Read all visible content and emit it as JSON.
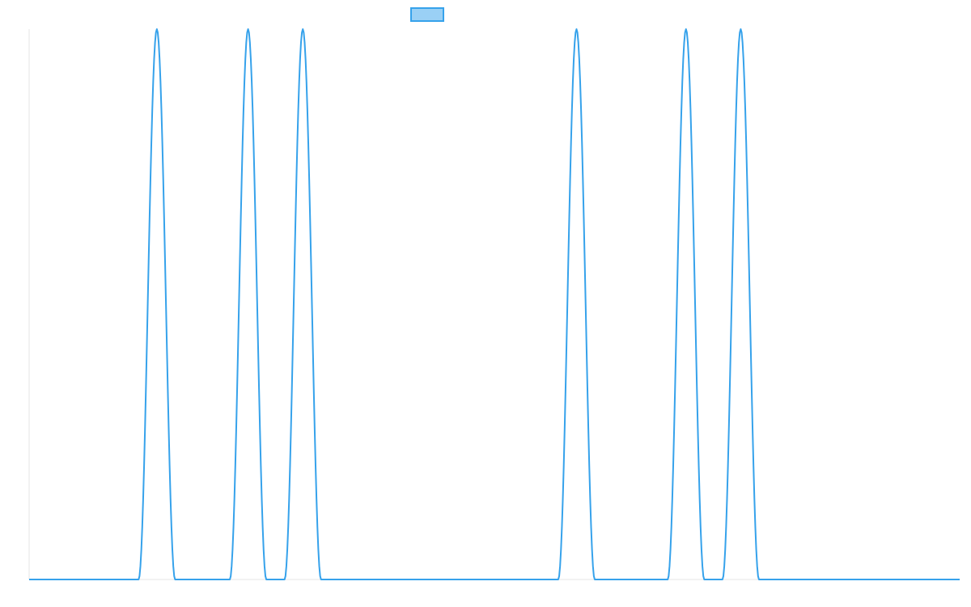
{
  "chart_data": {
    "type": "line",
    "title": "",
    "xlabel": "",
    "ylabel": "",
    "grid": false,
    "legend": {
      "position": "top-center",
      "entries": [
        {
          "label": "",
          "color": "#36A2EB",
          "fill": "#9AD0F5"
        }
      ]
    },
    "colors": {
      "line": "#36A2EB",
      "legend_fill": "#9AD0F5",
      "axis": "#e5e5e5"
    },
    "xlim": [
      0,
      51
    ],
    "ylim": [
      0,
      1
    ],
    "series": [
      {
        "name": "",
        "peaks": [
          7,
          12,
          15,
          30,
          36,
          39
        ],
        "peak_value": 1,
        "peak_half_width": 1
      }
    ]
  }
}
